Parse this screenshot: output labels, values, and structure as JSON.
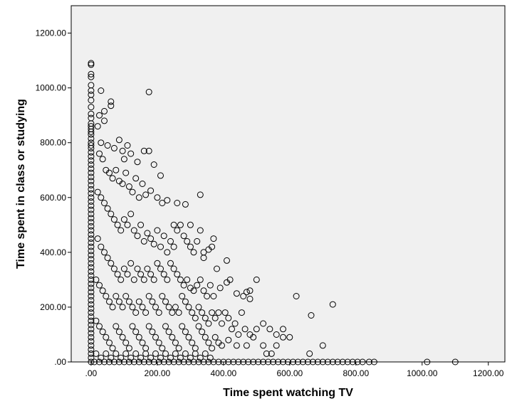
{
  "chart_data": {
    "type": "scatter",
    "title": "",
    "xlabel": "Time spent watching TV",
    "ylabel": "Time spent in class or studying",
    "xlim": [
      -60,
      1250
    ],
    "ylim": [
      0,
      1300
    ],
    "xticks": [
      ".00",
      "200.00",
      "400.00",
      "600.00",
      "800.00",
      "1000.00",
      "1200.00"
    ],
    "xtick_values": [
      0,
      200,
      400,
      600,
      800,
      1000,
      1200
    ],
    "yticks": [
      ".00",
      "200.00",
      "400.00",
      "600.00",
      "800.00",
      "1000.00",
      "1200.00"
    ],
    "ytick_values": [
      0,
      200,
      400,
      600,
      800,
      1000,
      1200
    ],
    "grid": false,
    "marker": "open-circle",
    "colors": {
      "plot_background": "#f0f0f0",
      "marker_stroke": "#000000",
      "frame": "#000000"
    },
    "points": [
      [
        0,
        1090
      ],
      [
        0,
        1085
      ],
      [
        0,
        1050
      ],
      [
        0,
        1040
      ],
      [
        0,
        1010
      ],
      [
        0,
        990
      ],
      [
        0,
        975
      ],
      [
        0,
        955
      ],
      [
        0,
        930
      ],
      [
        0,
        905
      ],
      [
        0,
        890
      ],
      [
        0,
        870
      ],
      [
        0,
        860
      ],
      [
        0,
        850
      ],
      [
        0,
        840
      ],
      [
        0,
        830
      ],
      [
        0,
        815
      ],
      [
        0,
        800
      ],
      [
        0,
        790
      ],
      [
        0,
        780
      ],
      [
        0,
        765
      ],
      [
        0,
        750
      ],
      [
        0,
        735
      ],
      [
        0,
        720
      ],
      [
        0,
        705
      ],
      [
        0,
        690
      ],
      [
        0,
        675
      ],
      [
        0,
        660
      ],
      [
        0,
        645
      ],
      [
        0,
        630
      ],
      [
        0,
        615
      ],
      [
        0,
        600
      ],
      [
        0,
        585
      ],
      [
        0,
        570
      ],
      [
        0,
        555
      ],
      [
        0,
        540
      ],
      [
        0,
        525
      ],
      [
        0,
        510
      ],
      [
        0,
        495
      ],
      [
        0,
        480
      ],
      [
        0,
        465
      ],
      [
        0,
        450
      ],
      [
        0,
        435
      ],
      [
        0,
        420
      ],
      [
        0,
        405
      ],
      [
        0,
        390
      ],
      [
        0,
        375
      ],
      [
        0,
        360
      ],
      [
        0,
        345
      ],
      [
        0,
        330
      ],
      [
        0,
        315
      ],
      [
        0,
        300
      ],
      [
        0,
        285
      ],
      [
        0,
        270
      ],
      [
        0,
        255
      ],
      [
        0,
        240
      ],
      [
        0,
        225
      ],
      [
        0,
        210
      ],
      [
        0,
        195
      ],
      [
        0,
        180
      ],
      [
        0,
        165
      ],
      [
        0,
        150
      ],
      [
        0,
        135
      ],
      [
        0,
        120
      ],
      [
        0,
        105
      ],
      [
        0,
        90
      ],
      [
        0,
        75
      ],
      [
        0,
        60
      ],
      [
        0,
        45
      ],
      [
        0,
        30
      ],
      [
        0,
        15
      ],
      [
        0,
        0
      ],
      [
        30,
        990
      ],
      [
        40,
        915
      ],
      [
        60,
        950
      ],
      [
        60,
        935
      ],
      [
        175,
        985
      ],
      [
        25,
        900
      ],
      [
        40,
        880
      ],
      [
        20,
        860
      ],
      [
        30,
        800
      ],
      [
        50,
        790
      ],
      [
        70,
        780
      ],
      [
        85,
        810
      ],
      [
        100,
        740
      ],
      [
        120,
        760
      ],
      [
        140,
        730
      ],
      [
        160,
        770
      ],
      [
        175,
        770
      ],
      [
        190,
        720
      ],
      [
        210,
        680
      ],
      [
        110,
        790
      ],
      [
        95,
        770
      ],
      [
        25,
        760
      ],
      [
        35,
        740
      ],
      [
        45,
        700
      ],
      [
        55,
        690
      ],
      [
        65,
        670
      ],
      [
        75,
        700
      ],
      [
        85,
        660
      ],
      [
        95,
        650
      ],
      [
        105,
        690
      ],
      [
        115,
        640
      ],
      [
        125,
        620
      ],
      [
        135,
        670
      ],
      [
        145,
        600
      ],
      [
        155,
        650
      ],
      [
        165,
        610
      ],
      [
        180,
        625
      ],
      [
        200,
        600
      ],
      [
        215,
        580
      ],
      [
        230,
        590
      ],
      [
        260,
        580
      ],
      [
        285,
        575
      ],
      [
        330,
        610
      ],
      [
        20,
        620
      ],
      [
        30,
        600
      ],
      [
        40,
        580
      ],
      [
        50,
        560
      ],
      [
        60,
        540
      ],
      [
        70,
        520
      ],
      [
        80,
        500
      ],
      [
        90,
        480
      ],
      [
        100,
        520
      ],
      [
        110,
        500
      ],
      [
        120,
        540
      ],
      [
        130,
        480
      ],
      [
        140,
        460
      ],
      [
        150,
        500
      ],
      [
        160,
        440
      ],
      [
        170,
        470
      ],
      [
        180,
        450
      ],
      [
        190,
        430
      ],
      [
        200,
        480
      ],
      [
        210,
        420
      ],
      [
        220,
        460
      ],
      [
        230,
        400
      ],
      [
        240,
        440
      ],
      [
        250,
        420
      ],
      [
        260,
        480
      ],
      [
        270,
        500
      ],
      [
        280,
        460
      ],
      [
        290,
        440
      ],
      [
        300,
        420
      ],
      [
        310,
        400
      ],
      [
        320,
        440
      ],
      [
        330,
        480
      ],
      [
        340,
        380
      ],
      [
        355,
        410
      ],
      [
        365,
        420
      ],
      [
        370,
        450
      ],
      [
        380,
        340
      ],
      [
        410,
        370
      ],
      [
        300,
        500
      ],
      [
        340,
        400
      ],
      [
        250,
        500
      ],
      [
        20,
        450
      ],
      [
        30,
        420
      ],
      [
        40,
        400
      ],
      [
        50,
        380
      ],
      [
        60,
        360
      ],
      [
        70,
        340
      ],
      [
        80,
        320
      ],
      [
        90,
        300
      ],
      [
        100,
        340
      ],
      [
        110,
        320
      ],
      [
        120,
        360
      ],
      [
        130,
        300
      ],
      [
        140,
        340
      ],
      [
        150,
        320
      ],
      [
        160,
        300
      ],
      [
        170,
        340
      ],
      [
        180,
        320
      ],
      [
        190,
        300
      ],
      [
        200,
        360
      ],
      [
        210,
        340
      ],
      [
        220,
        320
      ],
      [
        230,
        300
      ],
      [
        240,
        360
      ],
      [
        250,
        340
      ],
      [
        260,
        320
      ],
      [
        270,
        300
      ],
      [
        280,
        280
      ],
      [
        290,
        300
      ],
      [
        300,
        270
      ],
      [
        310,
        260
      ],
      [
        320,
        280
      ],
      [
        330,
        300
      ],
      [
        340,
        260
      ],
      [
        350,
        240
      ],
      [
        360,
        280
      ],
      [
        370,
        240
      ],
      [
        390,
        270
      ],
      [
        410,
        290
      ],
      [
        420,
        300
      ],
      [
        440,
        250
      ],
      [
        460,
        240
      ],
      [
        480,
        260
      ],
      [
        500,
        300
      ],
      [
        470,
        255
      ],
      [
        480,
        230
      ],
      [
        15,
        300
      ],
      [
        25,
        280
      ],
      [
        35,
        260
      ],
      [
        45,
        240
      ],
      [
        55,
        220
      ],
      [
        65,
        200
      ],
      [
        75,
        240
      ],
      [
        85,
        220
      ],
      [
        95,
        200
      ],
      [
        105,
        240
      ],
      [
        115,
        220
      ],
      [
        125,
        200
      ],
      [
        135,
        180
      ],
      [
        145,
        220
      ],
      [
        155,
        200
      ],
      [
        165,
        180
      ],
      [
        175,
        240
      ],
      [
        185,
        220
      ],
      [
        195,
        200
      ],
      [
        205,
        180
      ],
      [
        215,
        240
      ],
      [
        225,
        220
      ],
      [
        235,
        200
      ],
      [
        245,
        180
      ],
      [
        255,
        200
      ],
      [
        265,
        180
      ],
      [
        275,
        240
      ],
      [
        285,
        220
      ],
      [
        295,
        200
      ],
      [
        305,
        180
      ],
      [
        315,
        160
      ],
      [
        325,
        200
      ],
      [
        335,
        180
      ],
      [
        345,
        160
      ],
      [
        355,
        140
      ],
      [
        365,
        180
      ],
      [
        375,
        160
      ],
      [
        385,
        180
      ],
      [
        395,
        140
      ],
      [
        405,
        180
      ],
      [
        415,
        160
      ],
      [
        425,
        120
      ],
      [
        435,
        140
      ],
      [
        445,
        100
      ],
      [
        455,
        180
      ],
      [
        465,
        120
      ],
      [
        480,
        100
      ],
      [
        500,
        120
      ],
      [
        520,
        140
      ],
      [
        540,
        120
      ],
      [
        560,
        100
      ],
      [
        580,
        120
      ],
      [
        620,
        240
      ],
      [
        665,
        170
      ],
      [
        730,
        210
      ],
      [
        15,
        150
      ],
      [
        25,
        130
      ],
      [
        35,
        110
      ],
      [
        45,
        90
      ],
      [
        55,
        70
      ],
      [
        65,
        50
      ],
      [
        75,
        130
      ],
      [
        85,
        110
      ],
      [
        95,
        90
      ],
      [
        105,
        70
      ],
      [
        115,
        50
      ],
      [
        125,
        130
      ],
      [
        135,
        110
      ],
      [
        145,
        90
      ],
      [
        155,
        70
      ],
      [
        165,
        50
      ],
      [
        175,
        130
      ],
      [
        185,
        110
      ],
      [
        195,
        90
      ],
      [
        205,
        70
      ],
      [
        215,
        50
      ],
      [
        225,
        130
      ],
      [
        235,
        110
      ],
      [
        245,
        90
      ],
      [
        255,
        70
      ],
      [
        265,
        50
      ],
      [
        275,
        130
      ],
      [
        285,
        110
      ],
      [
        295,
        90
      ],
      [
        305,
        70
      ],
      [
        315,
        50
      ],
      [
        325,
        130
      ],
      [
        335,
        110
      ],
      [
        345,
        90
      ],
      [
        355,
        70
      ],
      [
        365,
        50
      ],
      [
        375,
        90
      ],
      [
        385,
        70
      ],
      [
        395,
        60
      ],
      [
        415,
        80
      ],
      [
        440,
        60
      ],
      [
        470,
        60
      ],
      [
        490,
        90
      ],
      [
        520,
        60
      ],
      [
        530,
        30
      ],
      [
        545,
        30
      ],
      [
        560,
        60
      ],
      [
        580,
        90
      ],
      [
        600,
        90
      ],
      [
        660,
        30
      ],
      [
        700,
        60
      ],
      [
        15,
        30
      ],
      [
        30,
        15
      ],
      [
        45,
        30
      ],
      [
        60,
        15
      ],
      [
        75,
        30
      ],
      [
        90,
        15
      ],
      [
        105,
        30
      ],
      [
        120,
        15
      ],
      [
        135,
        30
      ],
      [
        150,
        15
      ],
      [
        165,
        30
      ],
      [
        180,
        15
      ],
      [
        195,
        30
      ],
      [
        210,
        15
      ],
      [
        225,
        30
      ],
      [
        240,
        15
      ],
      [
        255,
        30
      ],
      [
        270,
        15
      ],
      [
        285,
        30
      ],
      [
        300,
        15
      ],
      [
        315,
        30
      ],
      [
        330,
        15
      ],
      [
        345,
        30
      ],
      [
        360,
        15
      ],
      [
        10,
        0
      ],
      [
        25,
        0
      ],
      [
        40,
        0
      ],
      [
        55,
        0
      ],
      [
        70,
        0
      ],
      [
        85,
        0
      ],
      [
        100,
        0
      ],
      [
        115,
        0
      ],
      [
        130,
        0
      ],
      [
        145,
        0
      ],
      [
        160,
        0
      ],
      [
        175,
        0
      ],
      [
        190,
        0
      ],
      [
        205,
        0
      ],
      [
        220,
        0
      ],
      [
        235,
        0
      ],
      [
        250,
        0
      ],
      [
        265,
        0
      ],
      [
        280,
        0
      ],
      [
        295,
        0
      ],
      [
        310,
        0
      ],
      [
        325,
        0
      ],
      [
        340,
        0
      ],
      [
        355,
        0
      ],
      [
        370,
        0
      ],
      [
        385,
        0
      ],
      [
        400,
        0
      ],
      [
        415,
        0
      ],
      [
        430,
        0
      ],
      [
        445,
        0
      ],
      [
        460,
        0
      ],
      [
        475,
        0
      ],
      [
        490,
        0
      ],
      [
        505,
        0
      ],
      [
        520,
        0
      ],
      [
        535,
        0
      ],
      [
        550,
        0
      ],
      [
        565,
        0
      ],
      [
        580,
        0
      ],
      [
        595,
        0
      ],
      [
        610,
        0
      ],
      [
        625,
        0
      ],
      [
        640,
        0
      ],
      [
        655,
        0
      ],
      [
        670,
        0
      ],
      [
        685,
        0
      ],
      [
        700,
        0
      ],
      [
        715,
        0
      ],
      [
        730,
        0
      ],
      [
        745,
        0
      ],
      [
        760,
        0
      ],
      [
        775,
        0
      ],
      [
        790,
        0
      ],
      [
        805,
        0
      ],
      [
        820,
        0
      ],
      [
        840,
        0
      ],
      [
        855,
        0
      ],
      [
        1015,
        0
      ],
      [
        1100,
        0
      ]
    ]
  }
}
